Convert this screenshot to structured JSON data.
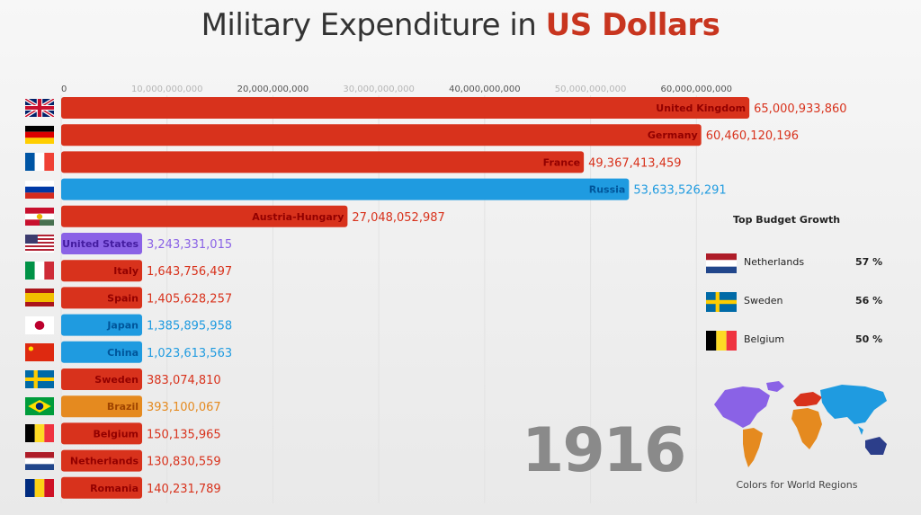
{
  "title": {
    "prefix": "Military Expenditure in ",
    "highlight": "US Dollars"
  },
  "year": "1916",
  "chart_data": {
    "type": "bar",
    "orientation": "horizontal",
    "title": "Military Expenditure in US Dollars",
    "xlim": [
      0,
      70000000000
    ],
    "ticks": [
      {
        "value": 0,
        "label": "0"
      },
      {
        "value": 10000000000,
        "label": "10,000,000,000"
      },
      {
        "value": 20000000000,
        "label": "20,000,000,000"
      },
      {
        "value": 30000000000,
        "label": "30,000,000,000"
      },
      {
        "value": 40000000000,
        "label": "40,000,000,000"
      },
      {
        "value": 50000000000,
        "label": "50,000,000,000"
      },
      {
        "value": 60000000000,
        "label": "60,000,000,000"
      }
    ],
    "bars": [
      {
        "name": "United Kingdom",
        "value": 65000933860,
        "label": "65,000,933,860",
        "color": "#d8321c",
        "flag": "gb"
      },
      {
        "name": "Germany",
        "value": 60460120196,
        "label": "60,460,120,196",
        "color": "#d8321c",
        "flag": "de"
      },
      {
        "name": "France",
        "value": 49367413459,
        "label": "49,367,413,459",
        "color": "#d8321c",
        "flag": "fr"
      },
      {
        "name": "Russia",
        "value": 53633526291,
        "label": "53,633,526,291",
        "color": "#1f9be0",
        "flag": "ru"
      },
      {
        "name": "Austria-Hungary",
        "value": 27048052987,
        "label": "27,048,052,987",
        "color": "#d8321c",
        "flag": "ah"
      },
      {
        "name": "United States",
        "value": 3243331015,
        "label": "3,243,331,015",
        "color": "#8a62e6",
        "flag": "us"
      },
      {
        "name": "Italy",
        "value": 1643756497,
        "label": "1,643,756,497",
        "color": "#d8321c",
        "flag": "it"
      },
      {
        "name": "Spain",
        "value": 1405628257,
        "label": "1,405,628,257",
        "color": "#d8321c",
        "flag": "es"
      },
      {
        "name": "Japan",
        "value": 1385895958,
        "label": "1,385,895,958",
        "color": "#1f9be0",
        "flag": "jp"
      },
      {
        "name": "China",
        "value": 1023613563,
        "label": "1,023,613,563",
        "color": "#1f9be0",
        "flag": "cn"
      },
      {
        "name": "Sweden",
        "value": 383074810,
        "label": "383,074,810",
        "color": "#d8321c",
        "flag": "se"
      },
      {
        "name": "Brazil",
        "value": 393100067,
        "label": "393,100,067",
        "color": "#e58a1f",
        "flag": "br"
      },
      {
        "name": "Belgium",
        "value": 150135965,
        "label": "150,135,965",
        "color": "#d8321c",
        "flag": "be"
      },
      {
        "name": "Netherlands",
        "value": 130830559,
        "label": "130,830,559",
        "color": "#d8321c",
        "flag": "nl"
      },
      {
        "name": "Romania",
        "value": 140231789,
        "label": "140,231,789",
        "color": "#d8321c",
        "flag": "ro"
      }
    ]
  },
  "top_growth": {
    "title": "Top Budget Growth",
    "items": [
      {
        "name": "Netherlands",
        "pct": "57 %",
        "flag": "nl"
      },
      {
        "name": "Sweden",
        "pct": "56 %",
        "flag": "se"
      },
      {
        "name": "Belgium",
        "pct": "50 %",
        "flag": "be"
      }
    ]
  },
  "legend": {
    "caption": "Colors for World Regions"
  }
}
